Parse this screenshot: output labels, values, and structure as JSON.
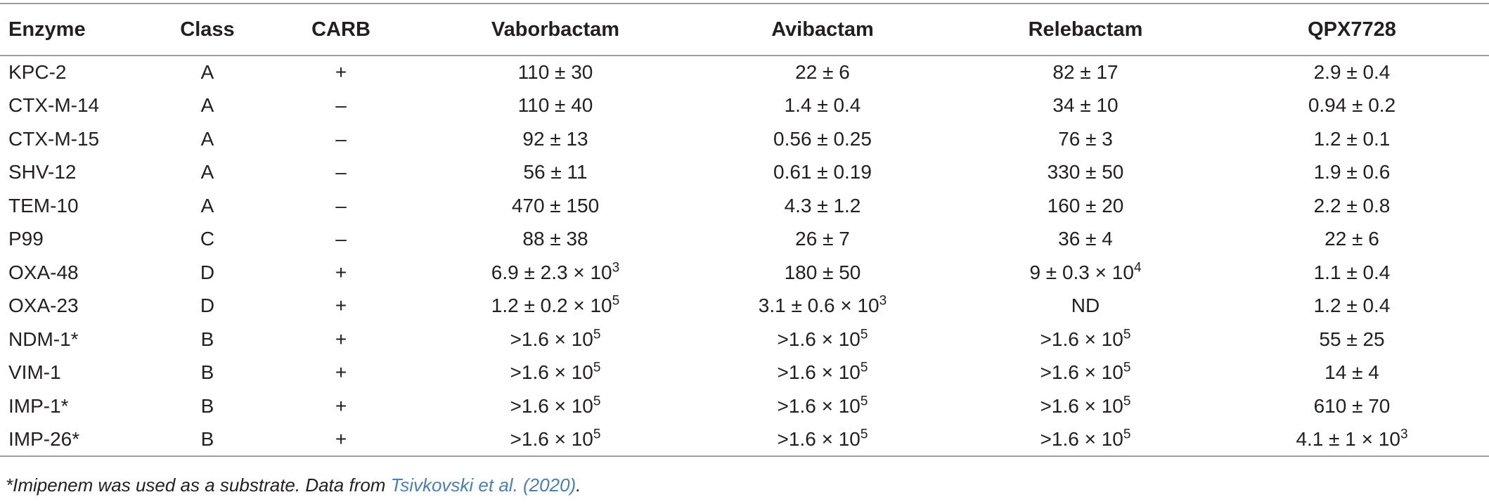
{
  "table": {
    "headers": [
      "Enzyme",
      "Class",
      "CARB",
      "Vaborbactam",
      "Avibactam",
      "Relebactam",
      "QPX7728"
    ],
    "rows": [
      {
        "enzyme": "KPC-2",
        "class": "A",
        "carb": "+",
        "vaborbactam": "110 ± 30",
        "avibactam": "22 ± 6",
        "relebactam": "82 ± 17",
        "qpx7728": "2.9 ± 0.4"
      },
      {
        "enzyme": "CTX-M-14",
        "class": "A",
        "carb": "–",
        "vaborbactam": "110 ± 40",
        "avibactam": "1.4 ± 0.4",
        "relebactam": "34 ± 10",
        "qpx7728": "0.94 ± 0.2"
      },
      {
        "enzyme": "CTX-M-15",
        "class": "A",
        "carb": "–",
        "vaborbactam": "92 ± 13",
        "avibactam": "0.56 ± 0.25",
        "relebactam": "76 ± 3",
        "qpx7728": "1.2 ± 0.1"
      },
      {
        "enzyme": "SHV-12",
        "class": "A",
        "carb": "–",
        "vaborbactam": "56 ± 11",
        "avibactam": "0.61 ± 0.19",
        "relebactam": "330 ± 50",
        "qpx7728": "1.9 ± 0.6"
      },
      {
        "enzyme": "TEM-10",
        "class": "A",
        "carb": "–",
        "vaborbactam": "470 ± 150",
        "avibactam": "4.3 ± 1.2",
        "relebactam": "160 ± 20",
        "qpx7728": "2.2 ± 0.8"
      },
      {
        "enzyme": "P99",
        "class": "C",
        "carb": "–",
        "vaborbactam": "88 ± 38",
        "avibactam": "26 ± 7",
        "relebactam": "36 ± 4",
        "qpx7728": "22 ± 6"
      },
      {
        "enzyme": "OXA-48",
        "class": "D",
        "carb": "+",
        "vaborbactam": "6.9 ± 2.3 × 10|3",
        "avibactam": "180 ± 50",
        "relebactam": "9 ± 0.3 × 10|4",
        "qpx7728": "1.1 ± 0.4"
      },
      {
        "enzyme": "OXA-23",
        "class": "D",
        "carb": "+",
        "vaborbactam": "1.2 ± 0.2 × 10|5",
        "avibactam": "3.1 ± 0.6 × 10|3",
        "relebactam": "ND",
        "qpx7728": "1.2 ± 0.4"
      },
      {
        "enzyme": "NDM-1*",
        "class": "B",
        "carb": "+",
        "vaborbactam": ">1.6 × 10|5",
        "avibactam": ">1.6 × 10|5",
        "relebactam": ">1.6 × 10|5",
        "qpx7728": "55 ± 25"
      },
      {
        "enzyme": "VIM-1",
        "class": "B",
        "carb": "+",
        "vaborbactam": ">1.6 × 10|5",
        "avibactam": ">1.6 × 10|5",
        "relebactam": ">1.6 × 10|5",
        "qpx7728": "14 ± 4"
      },
      {
        "enzyme": "IMP-1*",
        "class": "B",
        "carb": "+",
        "vaborbactam": ">1.6 × 10|5",
        "avibactam": ">1.6 × 10|5",
        "relebactam": ">1.6 × 10|5",
        "qpx7728": "610 ± 70"
      },
      {
        "enzyme": "IMP-26*",
        "class": "B",
        "carb": "+",
        "vaborbactam": ">1.6 × 10|5",
        "avibactam": ">1.6 × 10|5",
        "relebactam": ">1.6 × 10|5",
        "qpx7728": "4.1 ± 1 × 10|3"
      }
    ]
  },
  "footnote": {
    "text": "*Imipenem was used as a substrate. Data from ",
    "citation": "Tsivkovski et al. (2020)",
    "end": "."
  }
}
